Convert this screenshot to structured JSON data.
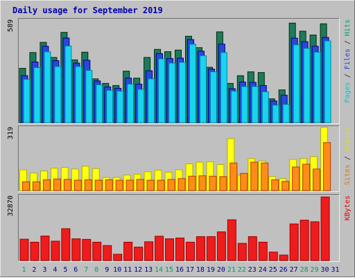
{
  "chart_data": {
    "type": "bar",
    "title": "Daily usage for September 2019",
    "days": [
      "1",
      "2",
      "3",
      "4",
      "5",
      "6",
      "7",
      "8",
      "9",
      "10",
      "11",
      "12",
      "13",
      "14",
      "15",
      "16",
      "17",
      "18",
      "19",
      "20",
      "21",
      "22",
      "23",
      "24",
      "25",
      "26",
      "27",
      "28",
      "29",
      "30",
      "31"
    ],
    "weekend_days": [
      "1",
      "7",
      "8",
      "14",
      "15",
      "21",
      "22",
      "28",
      "29"
    ],
    "panels": [
      {
        "name": "hits-panel",
        "ymax_label": "589",
        "ymax": 589,
        "legend": [
          "Pages",
          " / ",
          "Files",
          " / ",
          "Hits"
        ],
        "legend_colors": [
          "#00c8d8",
          "#202020",
          "#2040e0",
          "#202020",
          "#00a060"
        ],
        "series": [
          {
            "name": "Hits",
            "color": "#1e7a5a",
            "values": [
              310,
              400,
              458,
              372,
              515,
              358,
              402,
              250,
              224,
              212,
              294,
              254,
              372,
              418,
              405,
              414,
              493,
              428,
              316,
              518,
              224,
              268,
              290,
              286,
              136,
              187,
              568,
              522,
              500,
              564,
              0
            ]
          },
          {
            "name": "Files",
            "color": "#2848d8",
            "values": [
              268,
              346,
              436,
              354,
              483,
              340,
              356,
              238,
              204,
              196,
              254,
              220,
              296,
              394,
              366,
              368,
              474,
              408,
              306,
              448,
              194,
              232,
              230,
              212,
              124,
              157,
              482,
              462,
              436,
              486,
              0
            ]
          },
          {
            "name": "Pages",
            "color": "#18d4f0",
            "values": [
              247,
              314,
              404,
              320,
              437,
              320,
              298,
              216,
              184,
              180,
              220,
              190,
              250,
              364,
              340,
              344,
              447,
              382,
              290,
              400,
              180,
              206,
              206,
              176,
              100,
              104,
              444,
              424,
              402,
              466,
              0
            ]
          }
        ]
      },
      {
        "name": "visits-panel",
        "ymax_label": "319",
        "ymax": 319,
        "legend": [
          "Sites",
          " / ",
          "Visits"
        ],
        "legend_colors": [
          "#e07800",
          "#202020",
          "#e0e000"
        ],
        "series": [
          {
            "name": "Visits",
            "color": "#ffff10",
            "values": [
              104,
              88,
              98,
              112,
              116,
              108,
              122,
              110,
              66,
              66,
              78,
              82,
              94,
              102,
              92,
              104,
              134,
              142,
              144,
              130,
              260,
              78,
              160,
              148,
              70,
              60,
              156,
              160,
              170,
              316,
              0
            ]
          },
          {
            "name": "Sites",
            "color": "#ff8c18",
            "values": [
              44,
              44,
              54,
              58,
              56,
              52,
              54,
              52,
              54,
              52,
              52,
              56,
              52,
              52,
              56,
              60,
              72,
              74,
              72,
              70,
              138,
              86,
              142,
              138,
              54,
              46,
              118,
              132,
              108,
              240,
              0
            ]
          }
        ]
      },
      {
        "name": "kbytes-panel",
        "ymax_label": "32870",
        "ymax": 32870,
        "legend": [
          "KBytes"
        ],
        "legend_colors": [
          "#e00000"
        ],
        "series": [
          {
            "name": "KBytes",
            "color": "#ee1c1c",
            "values": [
              10800,
              9300,
              12400,
              9800,
              16100,
              11000,
              10700,
              9300,
              7600,
              3200,
              9300,
              6800,
              9500,
              12300,
              11000,
              11400,
              9300,
              12100,
              12100,
              14500,
              20600,
              8700,
              12100,
              9300,
              4300,
              2800,
              18500,
              20400,
              19600,
              32100,
              0
            ]
          }
        ]
      }
    ]
  },
  "colors": {
    "background": "#c0c0c0",
    "title": "#0000b0",
    "weekend_label": "#00a060",
    "weekday_label": "#000080"
  }
}
